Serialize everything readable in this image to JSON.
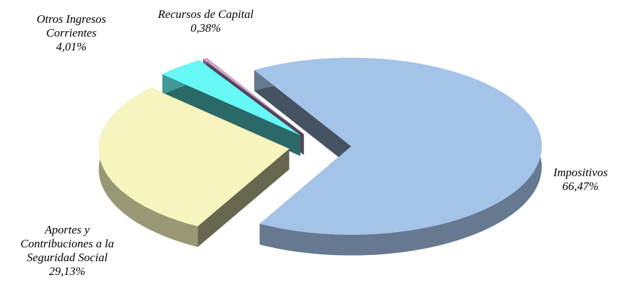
{
  "chart_data": {
    "type": "pie",
    "categories": [
      "Impositivos",
      "Aportes y Contribuciones a la Seguridad Social",
      "Otros Ingresos Corrientes",
      "Recursos de Capital"
    ],
    "values": [
      66.47,
      29.13,
      4.01,
      0.38
    ],
    "value_labels": [
      "66,47%",
      "29,13%",
      "4,01%",
      "0,38%"
    ],
    "colors": [
      "#a4c3e8",
      "#f5f5bd",
      "#66f7f7",
      "#c9a3cc"
    ]
  }
}
